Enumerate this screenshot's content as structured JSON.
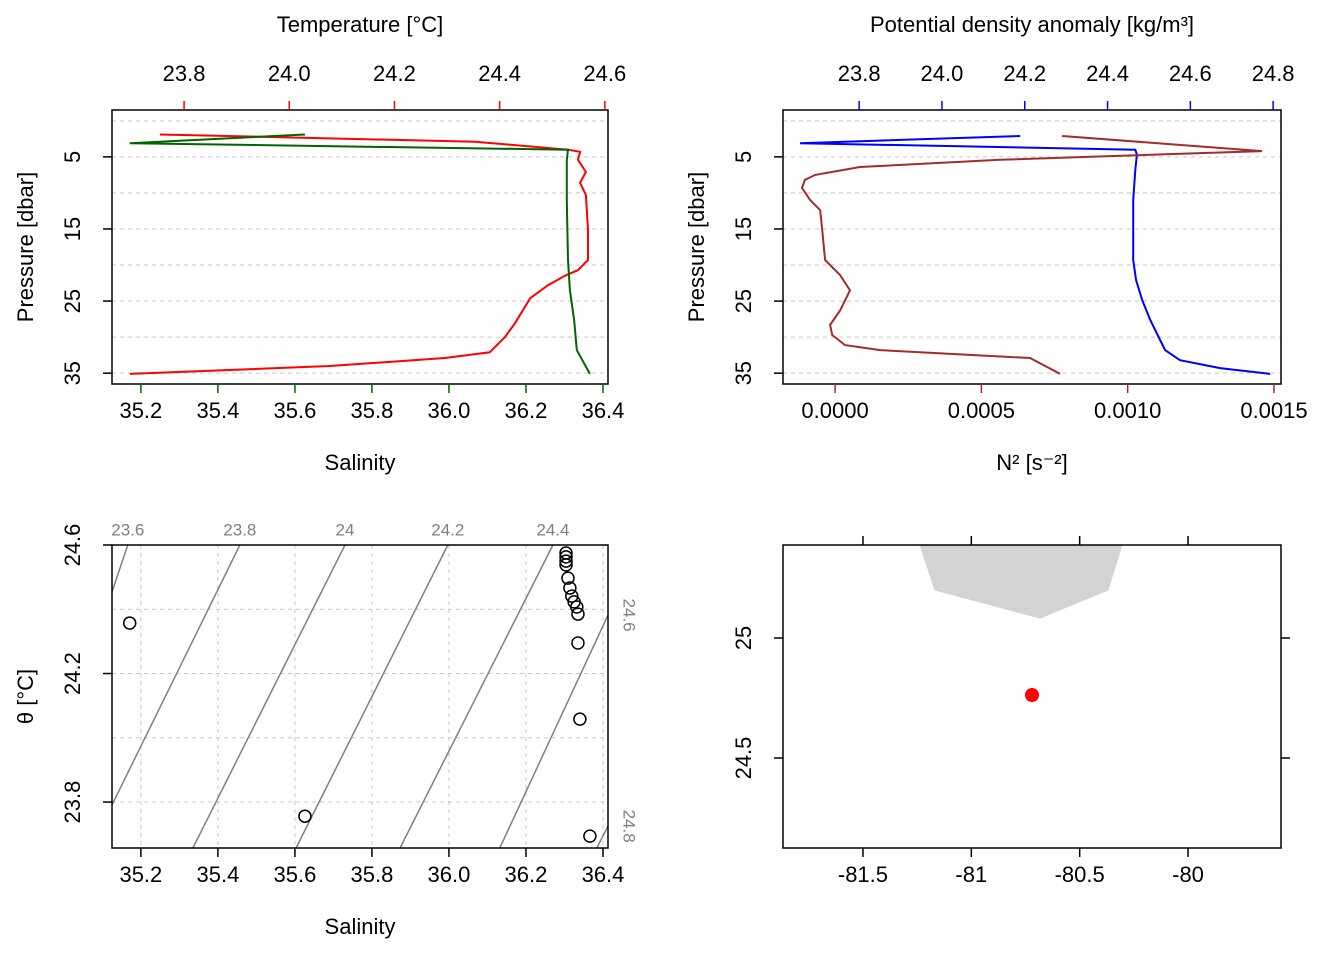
{
  "chart_data": [
    {
      "type": "profile",
      "x_label": "Salinity",
      "x2_label": "Temperature [°C]",
      "y_label": "Pressure [dbar]",
      "ylim": [
        36.5,
        -1.5
      ],
      "yticks": [
        5,
        15,
        25,
        35
      ],
      "ygrid": [
        0,
        5,
        10,
        15,
        20,
        25,
        30,
        35
      ],
      "xlim": [
        35.125,
        36.413
      ],
      "xticks": [
        35.2,
        35.4,
        35.6,
        35.8,
        {
          "value": 36,
          "label": "36.0"
        },
        36.2,
        36.4
      ],
      "x2lim": [
        23.663,
        24.606
      ],
      "x2ticks": [
        23.8,
        {
          "value": 24,
          "label": "24.0"
        },
        24.2,
        24.4,
        24.6
      ],
      "series": [
        {
          "axis": "x2",
          "color": "#ff0000",
          "values": [
            23.754,
            24.353,
            24.53,
            24.553,
            24.549,
            24.564,
            24.553,
            24.564,
            24.568,
            24.568,
            24.549,
            24.524,
            24.492,
            24.458,
            24.429,
            24.41,
            24.381,
            24.296,
            24.077,
            23.697
          ],
          "pressure": [
            1.9,
            2.9,
            4.0,
            4.3,
            5.4,
            7.1,
            8.6,
            10.3,
            15.1,
            19.3,
            20.7,
            21.5,
            22.8,
            24.6,
            28.1,
            30.0,
            32.1,
            32.9,
            34.0,
            35.1
          ]
        },
        {
          "axis": "x",
          "color": "#006400",
          "values": [
            35.626,
            35.171,
            36.309,
            36.306,
            36.306,
            36.309,
            36.314,
            36.325,
            36.332,
            36.366
          ],
          "pressure": [
            1.9,
            3.1,
            4.0,
            5.4,
            11.0,
            19.3,
            23.5,
            27.6,
            31.8,
            35.1
          ]
        }
      ]
    },
    {
      "type": "profile",
      "x_label": "N² [s⁻²]",
      "x2_label": "Potential density anomaly [kg/m³]",
      "y_label": "Pressure [dbar]",
      "ylim": [
        36.5,
        -1.5
      ],
      "yticks": [
        5,
        15,
        25,
        35
      ],
      "ygrid": [
        0,
        5,
        10,
        15,
        20,
        25,
        30,
        35
      ],
      "xlim": [
        -0.000178,
        0.001524
      ],
      "xticks": [
        {
          "value": 0,
          "label": "0.0000"
        },
        0.0005,
        {
          "value": 0.001,
          "label": "0.0010"
        },
        0.0015
      ],
      "x2lim": [
        23.616,
        24.819
      ],
      "x2ticks": [
        23.8,
        {
          "value": 24,
          "label": "24.0"
        },
        24.2,
        24.4,
        24.6,
        24.8
      ],
      "series": [
        {
          "axis": "x2",
          "color": "#0000ff",
          "values": [
            24.189,
            23.657,
            24.467,
            24.471,
            24.467,
            24.462,
            24.462,
            24.469,
            24.484,
            24.503,
            24.527,
            24.539,
            24.575,
            24.672,
            24.793
          ],
          "pressure": [
            2.1,
            3.1,
            4.0,
            4.7,
            6.8,
            11.0,
            19.3,
            22.1,
            24.9,
            27.6,
            30.4,
            31.8,
            33.2,
            34.3,
            35.1
          ]
        },
        {
          "axis": "x",
          "color": "#a52a2a",
          "values": [
            0.000776,
            0.001459,
            0.000564,
            8.5e-05,
            -6.8e-05,
            -0.000103,
            -0.000113,
            -8.5e-05,
            -5.1e-05,
            -4.4e-05,
            -3.4e-05,
            1.7e-05,
            5.1e-05,
            1.7e-05,
            -1.7e-05,
            -1e-05,
            3.4e-05,
            0.000154,
            0.000666,
            0.000769
          ],
          "pressure": [
            2.1,
            4.2,
            5.4,
            6.4,
            7.5,
            8.2,
            9.3,
            11.0,
            12.4,
            15.1,
            19.3,
            21.4,
            23.5,
            26.3,
            28.3,
            29.7,
            31.1,
            31.8,
            32.9,
            35.1
          ]
        }
      ]
    },
    {
      "type": "ts",
      "x_label": "Salinity",
      "y_label": "θ [°C]",
      "xlim": [
        35.125,
        36.413
      ],
      "xticks": [
        35.2,
        35.4,
        35.6,
        35.8,
        {
          "value": 36,
          "label": "36.0"
        },
        36.2,
        36.4
      ],
      "ylim": [
        23.657,
        24.6
      ],
      "yticks": [
        23.8,
        24.2,
        24.6
      ],
      "ygrid": [
        23.8,
        24.0,
        24.2,
        24.4,
        24.6
      ],
      "salinity": [
        36.304,
        36.304,
        36.304,
        36.304,
        36.309,
        36.314,
        36.319,
        36.325,
        36.332,
        36.335,
        36.335,
        36.34,
        36.366,
        35.171,
        35.626
      ],
      "theta": [
        24.575,
        24.563,
        24.55,
        24.538,
        24.497,
        24.466,
        24.441,
        24.423,
        24.407,
        24.385,
        24.295,
        24.058,
        23.694,
        24.357,
        23.756
      ],
      "isopycnal_color": "#808080",
      "isopycnals": [
        {
          "sigma": 23.6,
          "salinity": [
            35.125,
            35.166
          ],
          "theta": [
            24.454,
            24.6
          ]
        },
        {
          "sigma": 23.8,
          "salinity": [
            35.125,
            35.457
          ],
          "theta": [
            23.791,
            24.6
          ]
        },
        {
          "sigma": 24,
          "salinity": [
            35.335,
            35.73
          ],
          "theta": [
            23.657,
            24.6
          ]
        },
        {
          "sigma": 24.2,
          "salinity": [
            35.603,
            35.997
          ],
          "theta": [
            23.657,
            24.6
          ]
        },
        {
          "sigma": 24.4,
          "salinity": [
            35.873,
            36.27
          ],
          "theta": [
            23.657,
            24.6
          ]
        },
        {
          "sigma": 24.6,
          "salinity": [
            36.132,
            36.413
          ],
          "theta": [
            23.657,
            24.382
          ]
        },
        {
          "sigma": 24.8,
          "salinity": [
            36.384,
            36.413
          ],
          "theta": [
            23.657,
            23.725
          ]
        }
      ]
    },
    {
      "type": "map",
      "xlim": [
        -81.869,
        -79.571
      ],
      "xticks": [
        -81.5,
        -81,
        -80.5,
        -80
      ],
      "ylim": [
        24.125,
        25.3875
      ],
      "yticks": [
        24.5,
        25
      ],
      "land": {
        "color": "#d3d3d3",
        "lon": [
          -81.237,
          -81.168,
          -80.683,
          -80.369,
          -80.305
        ],
        "lat": [
          25.3875,
          25.2,
          25.083,
          25.2,
          25.3875
        ]
      },
      "station": {
        "color": "#ff0000",
        "lon": -80.72,
        "lat": 24.7625
      }
    }
  ]
}
